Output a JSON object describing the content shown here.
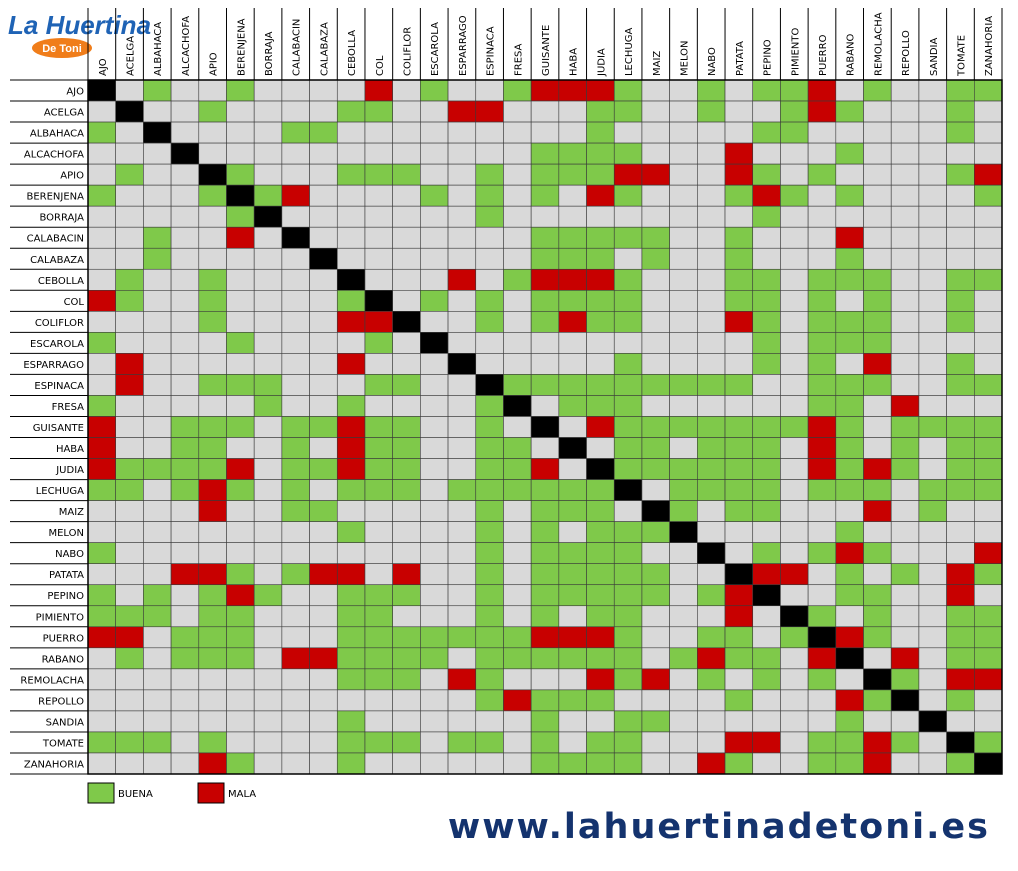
{
  "logo": {
    "title": "La Huertina",
    "subtitle": "De Toni"
  },
  "plants": [
    "AJO",
    "ACELGA",
    "ALBAHACA",
    "ALCACHOFA",
    "APIO",
    "BERENJENA",
    "BORRAJA",
    "CALABACIN",
    "CALABAZA",
    "CEBOLLA",
    "COL",
    "COLIFLOR",
    "ESCAROLA",
    "ESPARRAGO",
    "ESPINACA",
    "FRESA",
    "GUISANTE",
    "HABA",
    "JUDIA",
    "LECHUGA",
    "MAIZ",
    "MELON",
    "NABO",
    "PATATA",
    "PEPINO",
    "PIMIENTO",
    "PUERRO",
    "RABANO",
    "REMOLACHA",
    "REPOLLO",
    "SANDIA",
    "TOMATE",
    "ZANAHORIA"
  ],
  "matrix": [
    "X.G..G....R.G..GRRRG..G.GGR.G..GG",
    ".X..G....GG..RR...GG..G..GRG...G.",
    "G.X....GG.........G.....GG.....G.",
    "...X............GGGG...R...G.....",
    ".G..XG...GGG..G.GGGRR..RG.G....GR",
    "G...GXGR....G.G.G.RG...GRG.G....G",
    ".....GX.......G.........G........",
    "..G..R.X........GGGGG..G...R.....",
    "..G.....X.......GGG.G..G...G.....",
    ".G..G....X...R.GRRRG...GG.GGG..GG",
    "RG..G....GX.G.G.GGGG...GG.G.G..G.",
    "....G....RRX..G.GRGG...RG.GGG..G.",
    "G....G....G.X...........G.GGG....",
    ".R.......R...X.....G....G.G.R..G.",
    ".R..GGG...GG..XGGGGGGGGG..GGG..GG",
    "G.....G..G....GX.GGG......GG.R...",
    "R..GGG.GGRGG..G.X.RGGGGGGGRG.GGGG",
    "R..GG..G.RGG..GG.X.GG.GGG.RG.G.GG",
    "RGGGGR.GGRGG..GGR.XGGGGGG.RGRG.GG",
    "GG.GRG.G.GGG.GGGGGGX.GGGG.GGG.GGG",
    "....R..GG.....G.GGG.XG.GG...R.G..",
    ".........G....G.G.GGGX.....G.....",
    "G.............G.GGGG..X.G.GRG...R",
    "...RRG.GRR.R..G.GGGGG..XRR.G.G.RG",
    "G.G.GRG..GGG..G.GGGGG.GRX..GG..R.",
    "GGG.GG...GG...G.G.GG...R.XG.G..GG",
    "RR.GGG...GGGGGGGRRRG..GG.GXRG..GG",
    ".G.GGG.RRGGGG.GGGGGG.GRGG.RX.R.GG",
    ".........GGG.RG...RGR.G.G.G.XG.RR",
    "..............GRGGG....G...RGX.G.",
    ".........G......G..GG......G..X..",
    "GGG.G....GGG.GG.G.GG...RR.GGRG.XG",
    "....RG...G......GGGG..RG..GGR..GX"
  ],
  "colors": {
    "G": "#7fc94a",
    "R": "#c80000",
    ".": "#d9d9d9",
    "X": "#000000"
  },
  "legend": [
    {
      "label": "BUENA",
      "code": "G"
    },
    {
      "label": "MALA",
      "code": "R"
    }
  ],
  "footer": {
    "url": "www.lahuertinadetoni.es"
  }
}
